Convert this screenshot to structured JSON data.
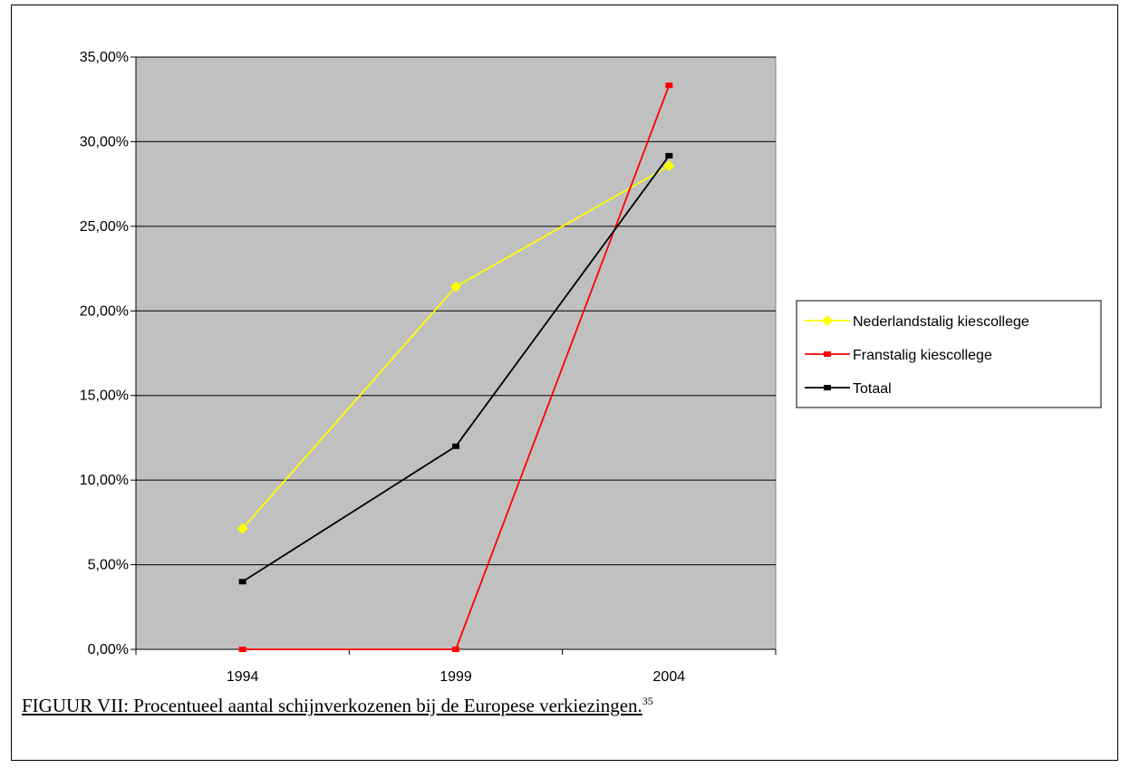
{
  "chart_data": {
    "type": "line",
    "categories": [
      "1994",
      "1999",
      "2004"
    ],
    "series": [
      {
        "name": "Nederlandstalig kiescollege",
        "values": [
          7.14,
          21.43,
          28.57
        ],
        "color": "#ffff00",
        "marker": "diamond"
      },
      {
        "name": "Franstalig kiescollege",
        "values": [
          0.0,
          0.0,
          33.33
        ],
        "color": "#ff0000",
        "marker": "square"
      },
      {
        "name": "Totaal",
        "values": [
          4.0,
          12.0,
          29.17
        ],
        "color": "#000000",
        "marker": "square"
      }
    ],
    "yticks": [
      "0,00%",
      "5,00%",
      "10,00%",
      "15,00%",
      "20,00%",
      "25,00%",
      "30,00%",
      "35,00%"
    ],
    "ylim": [
      0,
      35
    ],
    "grid": true,
    "plot_background": "#c0c0c0",
    "legend_position": "right"
  },
  "caption": {
    "text": "FIGUUR VII: Procentueel aantal schijnverkozenen bij de Europese verkiezingen.",
    "footnote": "35"
  }
}
